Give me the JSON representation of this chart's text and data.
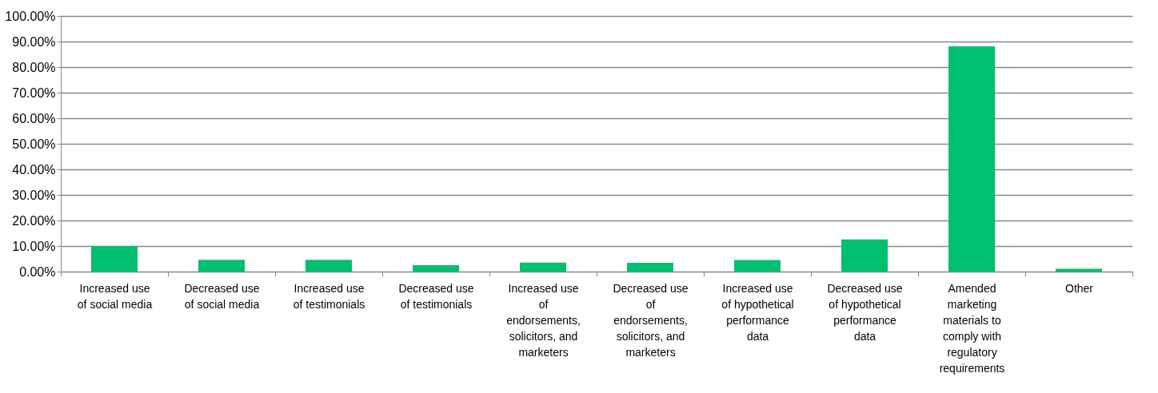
{
  "chart_data": {
    "type": "bar",
    "categories": [
      "Increased use of social media",
      "Decreased use of social media",
      "Increased use of testimonials",
      "Decreased use of testimonials",
      "Increased use of endorsements, solicitors, and marketers",
      "Decreased use of endorsements, solicitors, and marketers",
      "Increased use of hypothetical performance data",
      "Decreased use of hypothetical performance data",
      "Amended marketing materials to comply with regulatory requirements",
      "Other"
    ],
    "values": [
      10.0,
      4.6,
      4.6,
      2.5,
      3.5,
      3.4,
      4.5,
      12.6,
      88.1,
      1.1
    ],
    "color": "#00bf6f",
    "ylim": [
      0,
      100
    ],
    "yticks": [
      {
        "value": 0,
        "label": "0.00%"
      },
      {
        "value": 10,
        "label": "10.00%"
      },
      {
        "value": 20,
        "label": "20.00%"
      },
      {
        "value": 30,
        "label": "30.00%"
      },
      {
        "value": 40,
        "label": "40.00%"
      },
      {
        "value": 50,
        "label": "50.00%"
      },
      {
        "value": 60,
        "label": "60.00%"
      },
      {
        "value": 70,
        "label": "70.00%"
      },
      {
        "value": 80,
        "label": "80.00%"
      },
      {
        "value": 90,
        "label": "90.00%"
      },
      {
        "value": 100,
        "label": "100.00%"
      }
    ],
    "grid": "y"
  }
}
